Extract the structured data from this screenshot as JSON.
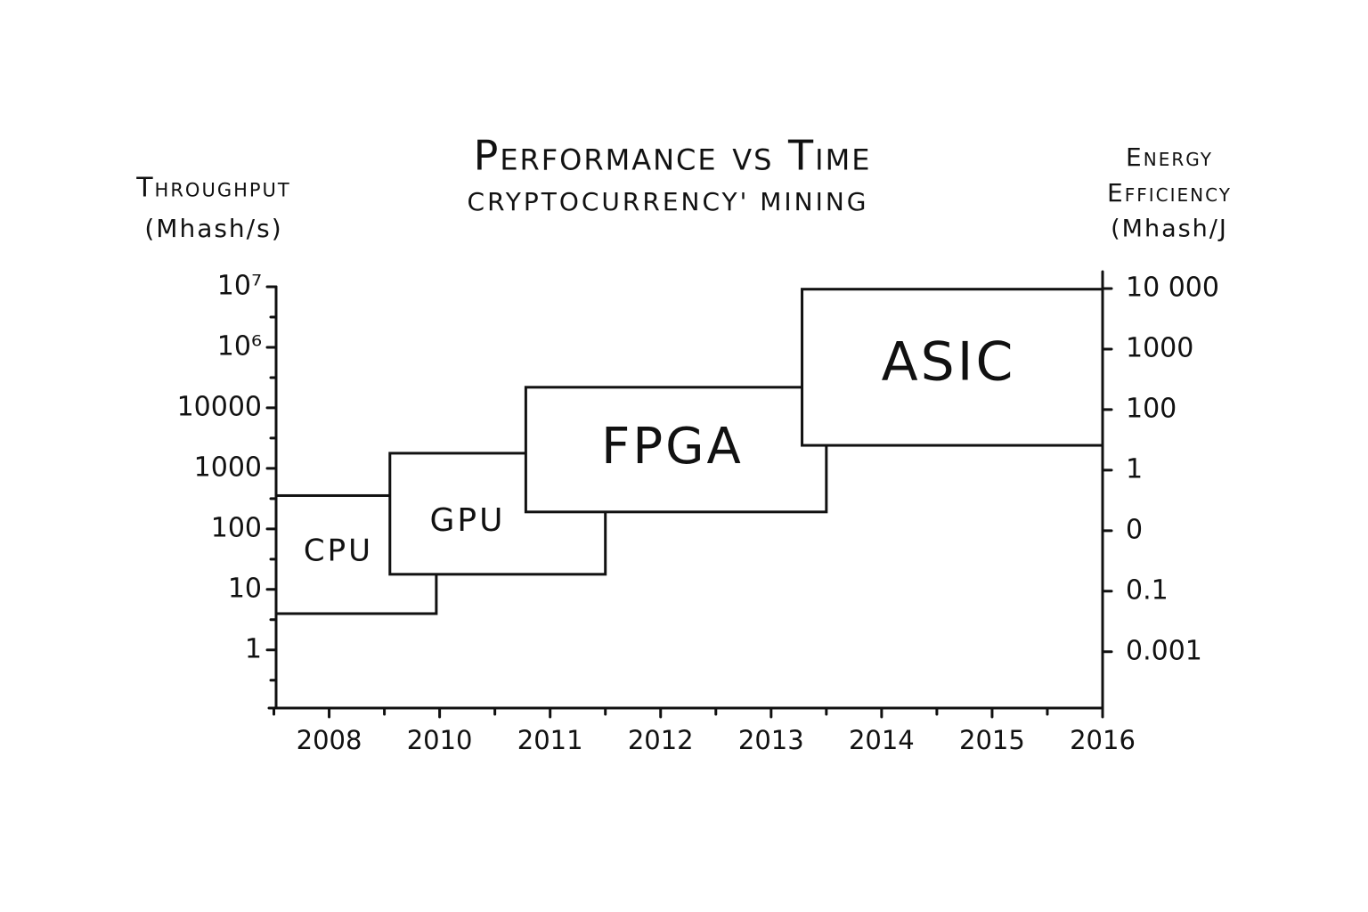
{
  "chart_data": {
    "type": "range-box",
    "title": "Performance vs Time",
    "subtitle": "Cryptocurrency' Mining",
    "ylabel": [
      "Throughput",
      "(Mhash/s)"
    ],
    "y2label": [
      "Energy",
      "Efficiency",
      "(Mhash/J"
    ],
    "categories": [
      "2008",
      "2010",
      "2011",
      "2012",
      "2013",
      "2014",
      "2015",
      "2016"
    ],
    "xlim": [
      -0.48,
      7
    ],
    "y_levels": [
      "1",
      "10",
      "100",
      "1000",
      "10000",
      "10⁶",
      "10⁷"
    ],
    "ylim": [
      -0.96,
      6
    ],
    "y2_levels": [
      "0.001",
      "0.1",
      "0",
      "1",
      "100",
      "1000",
      "10 000"
    ],
    "color": "#111111",
    "series": [
      {
        "name": "CPU",
        "x_range": [
          -0.48,
          0.97
        ],
        "y_range": [
          0.6,
          2.55
        ]
      },
      {
        "name": "GPU",
        "x_range": [
          0.55,
          2.5
        ],
        "y_range": [
          1.25,
          3.25
        ]
      },
      {
        "name": "FPGA",
        "x_range": [
          1.78,
          4.5
        ],
        "y_range": [
          2.28,
          4.34
        ]
      },
      {
        "name": "ASIC",
        "x_range": [
          4.28,
          7
        ],
        "y_range": [
          3.38,
          5.96
        ]
      }
    ]
  }
}
